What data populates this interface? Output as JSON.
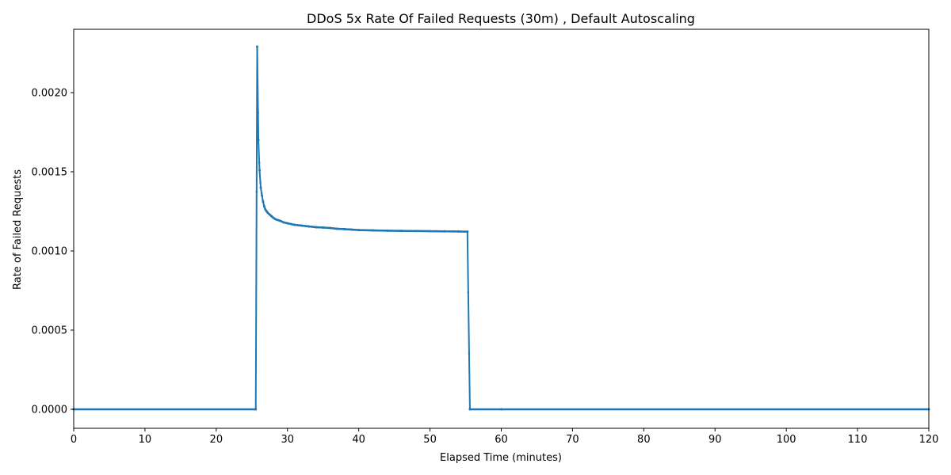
{
  "chart_data": {
    "type": "line",
    "title": "DDoS 5x Rate Of Failed Requests (30m) , Default Autoscaling",
    "xlabel": "Elapsed Time (minutes)",
    "ylabel": "Rate of Failed Requests",
    "xlim": [
      0,
      120
    ],
    "ylim": [
      -0.00012,
      0.0024
    ],
    "x_ticks": [
      0,
      10,
      20,
      30,
      40,
      50,
      60,
      70,
      80,
      90,
      100,
      110,
      120
    ],
    "x_tick_labels": [
      "0",
      "10",
      "20",
      "30",
      "40",
      "50",
      "60",
      "70",
      "80",
      "90",
      "100",
      "110",
      "120"
    ],
    "y_ticks": [
      0.0,
      0.0005,
      0.001,
      0.0015,
      0.002
    ],
    "y_tick_labels": [
      "0.0000",
      "0.0005",
      "0.0010",
      "0.0015",
      "0.0020"
    ],
    "grid": false,
    "line_color": "#1f77b4",
    "marker": "dot",
    "series": [
      {
        "x": [
          0,
          25.5,
          25.55,
          25.75,
          25.92,
          26.08,
          26.25,
          26.42,
          26.58,
          26.75,
          26.92,
          27.08,
          27.25,
          27.5,
          27.75,
          28.0,
          28.33,
          28.67,
          29.0,
          29.5,
          30.0,
          31.0,
          32.0,
          33.0,
          34.0,
          35.0,
          36.0,
          37.0,
          38.0,
          39.0,
          40.0,
          42.0,
          44.0,
          46.0,
          48.0,
          50.0,
          52.0,
          54.0,
          55.25,
          55.6,
          60.0,
          120.0
        ],
        "y": [
          0.0,
          0.0,
          0.0,
          0.00229,
          0.0017,
          0.00151,
          0.0014,
          0.00135,
          0.00131,
          0.00128,
          0.00126,
          0.00125,
          0.00124,
          0.00123,
          0.00122,
          0.00121,
          0.0012,
          0.001195,
          0.00119,
          0.00118,
          0.001175,
          0.001165,
          0.00116,
          0.001155,
          0.00115,
          0.001148,
          0.001145,
          0.00114,
          0.001138,
          0.001135,
          0.001132,
          0.00113,
          0.001128,
          0.001127,
          0.001126,
          0.001125,
          0.001124,
          0.001123,
          0.001122,
          0.0,
          0.0,
          0.0
        ]
      }
    ]
  }
}
